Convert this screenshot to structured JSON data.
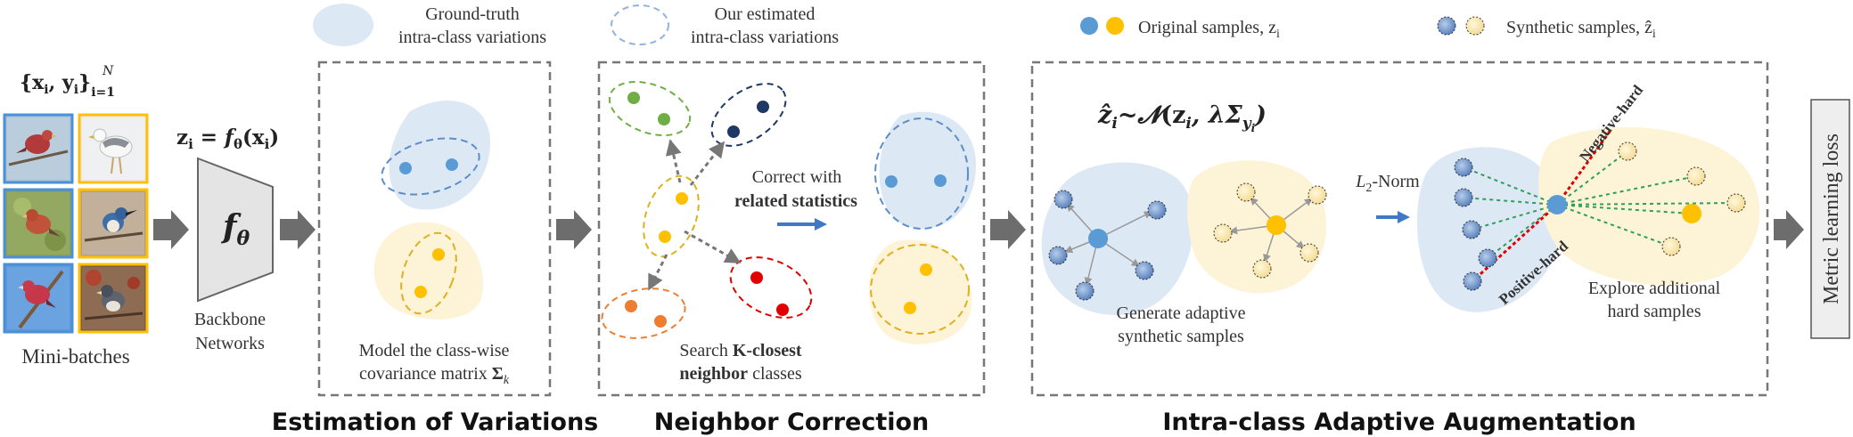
{
  "legend": {
    "gt_label_line1": "Ground-truth",
    "gt_label_line2": "intra-class variations",
    "est_label_line1": "Our estimated",
    "est_label_line2": "intra-class variations",
    "original_label": "Original samples, z",
    "original_sub": "i",
    "synthetic_label": "Synthetic samples, ẑ",
    "synthetic_sub": "i"
  },
  "input": {
    "dataset_set": "{x",
    "dataset_set_sub": "i",
    "dataset_set_mid": ", y",
    "dataset_set_sub2": "i",
    "dataset_set_close": "}",
    "dataset_set_sup": "N",
    "dataset_set_sub3": "i=1",
    "images": [
      "red-finch-bird",
      "seagull-bird",
      "cardinal-bird",
      "kingfisher-bird",
      "purple-finch-bird",
      "junco-bird"
    ],
    "minibatch_label": "Mini-batches"
  },
  "backbone": {
    "equation": "z",
    "equation_sub": "i",
    "equation_rest": " = f",
    "equation_theta": "θ",
    "equation_arg": "(x",
    "equation_arg_sub": "i",
    "equation_arg_close": ")",
    "symbol": "f",
    "symbol_sub": "θ",
    "label_line1": "Backbone",
    "label_line2": "Networks"
  },
  "estimation": {
    "desc_line1": "Model the class-wise",
    "desc_line2": "covariance matrix ",
    "desc_sigma": "Σ",
    "desc_sigma_sub": "k",
    "caption": "Estimation of Variations"
  },
  "neighbor": {
    "correct_line1": "Correct with",
    "correct_line2": "related statistics",
    "search_line1_a": "Search ",
    "search_line1_b": "K-closest",
    "search_line2_a": "neighbor",
    "search_line2_b": " classes",
    "caption": "Neighbor Correction"
  },
  "augmentation": {
    "formula_lhs": "ẑ",
    "formula_lhs_sub": "i",
    "formula_rest": "~𝓝",
    "formula_args": "(z",
    "formula_args_sub": "i",
    "formula_mid": ", λΣ",
    "formula_sigma_sub": "y",
    "formula_sigma_subsub": "i",
    "formula_close": ")",
    "norm_label": "L",
    "norm_sub": "2",
    "norm_rest": "-Norm",
    "generate_line1": "Generate adaptive",
    "generate_line2": "synthetic samples",
    "explore_line1": "Explore additional",
    "explore_line2": "hard samples",
    "negative_hard": "Negative-hard",
    "positive_hard": "Positive-hard",
    "caption": "Intra-class Adaptive Augmentation"
  },
  "output": {
    "loss_label": "Metric learning loss"
  },
  "colors": {
    "blue_fill": "#5b9bd5",
    "yellow_fill": "#ffc000",
    "blue_region": "#dde8f5",
    "yellow_region": "#fdf3d6",
    "green_dot": "#70ad47",
    "navy_dot": "#1f3864",
    "orange_dot": "#ed7d31",
    "red_dot": "#e00000",
    "arrow_gray": "#6d6d6d",
    "hard_red": "#e00000",
    "hard_green": "#2e9e5a"
  }
}
